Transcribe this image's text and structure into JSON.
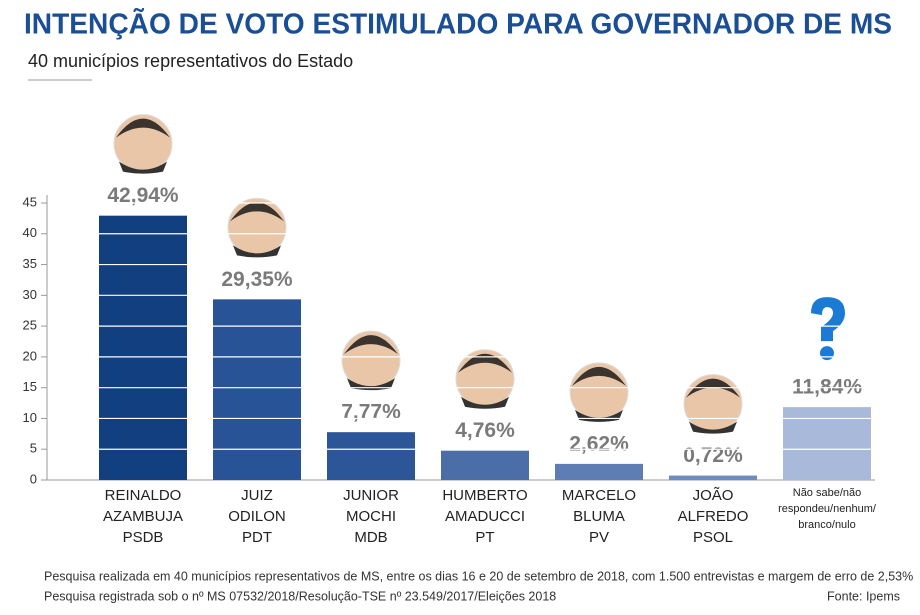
{
  "chart_data": {
    "type": "bar",
    "title": "INTENÇÃO DE VOTO ESTIMULADO PARA GOVERNADOR DE MS",
    "subtitle": "40 municípios representativos do Estado",
    "categories": [
      [
        "REINALDO",
        "AZAMBUJA",
        "PSDB"
      ],
      [
        "JUIZ",
        "ODILON",
        "PDT"
      ],
      [
        "JUNIOR",
        "MOCHI",
        "MDB"
      ],
      [
        "HUMBERTO",
        "AMADUCCI",
        "PT"
      ],
      [
        "MARCELO",
        "BLUMA",
        "PV"
      ],
      [
        "JOÃO",
        "ALFREDO",
        "PSOL"
      ],
      [
        "Não sabe/não",
        "respondeu/nenhum/",
        "branco/nulo"
      ]
    ],
    "values": [
      42.94,
      29.35,
      7.77,
      4.76,
      2.62,
      0.72,
      11.84
    ],
    "value_labels": [
      "42,94%",
      "29,35%",
      "7,77%",
      "4,76%",
      "2,62%",
      "0,72%",
      "11,84%"
    ],
    "colors": [
      "#123f80",
      "#285497",
      "#2c5698",
      "#4b6ea8",
      "#5d7db4",
      "#6f8cc0",
      "#a9b9da"
    ],
    "ylim": [
      0,
      45
    ],
    "yticks": [
      0,
      5,
      10,
      15,
      20,
      25,
      30,
      35,
      40,
      45
    ],
    "grid": true,
    "notes": [
      "Pesquisa realizada em 40 municípios representativos de MS, entre os dias 16 e 20 de setembro de 2018, com 1.500 entrevistas e margem de erro de 2,53%",
      "Pesquisa registrada sob o nº MS 07532/2018/Resolução-TSE nº 23.549/2017/Eleições 2018"
    ],
    "source": "Fonte: Ipems"
  }
}
